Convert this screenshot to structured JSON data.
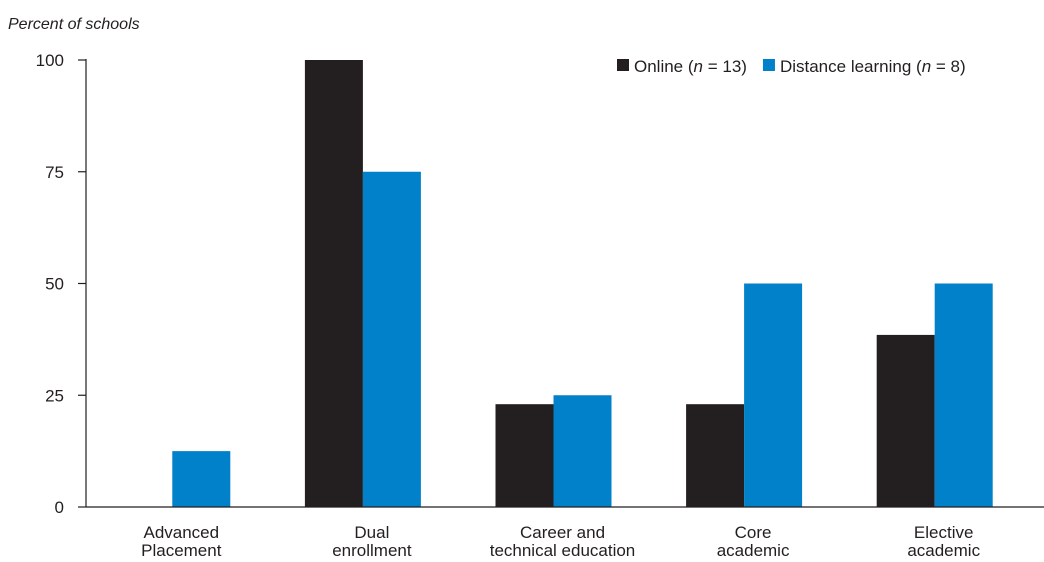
{
  "chart_data": {
    "type": "bar",
    "ylabel": "Percent of schools",
    "categories": [
      [
        "Advanced",
        "Placement"
      ],
      [
        "Dual",
        "enrollment"
      ],
      [
        "Career and",
        "technical education"
      ],
      [
        "Core",
        "academic"
      ],
      [
        "Elective",
        "academic"
      ]
    ],
    "series": [
      {
        "name_main": "Online (",
        "name_var": "n",
        "name_rest": " = 13)",
        "color": "#231f20",
        "values": [
          0,
          100,
          23,
          23,
          38.5
        ]
      },
      {
        "name_main": "Distance learning (",
        "name_var": "n",
        "name_rest": " = 8)",
        "color": "#0081c9",
        "values": [
          12.5,
          75,
          25,
          50,
          50
        ]
      }
    ],
    "ylim": [
      0,
      100
    ],
    "yticks": [
      0,
      25,
      50,
      75,
      100
    ],
    "grid": false,
    "legend_position": "top-right"
  }
}
